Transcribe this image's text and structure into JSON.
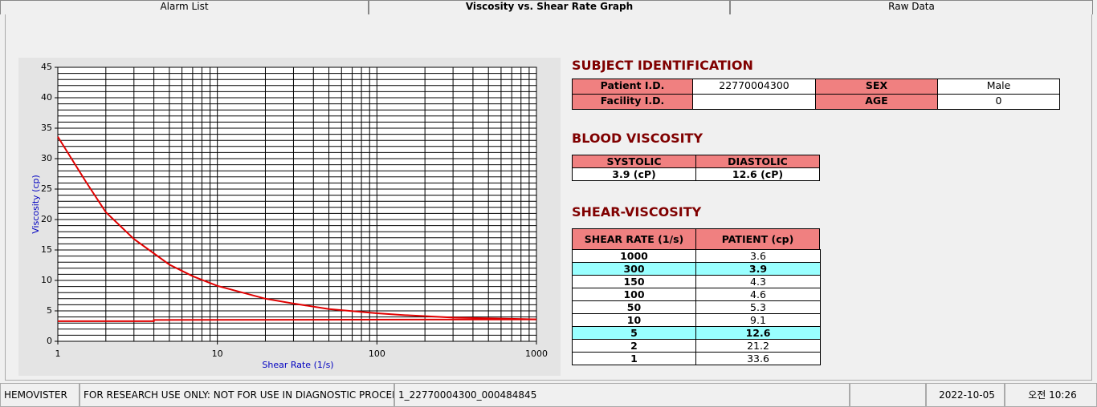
{
  "tabs": [
    {
      "label": "Alarm List"
    },
    {
      "label": "Viscosity vs. Shear Rate Graph",
      "active": true
    },
    {
      "label": "Raw Data"
    }
  ],
  "chart_data": {
    "type": "line",
    "x_label": "Shear Rate (1/s)",
    "y_label": "Viscosity (cp)",
    "xlog": true,
    "grid": true,
    "xlim": [
      1,
      1000
    ],
    "xticks": [
      1,
      10,
      100,
      1000
    ],
    "xminorticks": [
      2,
      3,
      4,
      5,
      6,
      7,
      8,
      9,
      20,
      30,
      40,
      50,
      60,
      70,
      80,
      90,
      200,
      300,
      400,
      500,
      600,
      700,
      800,
      900
    ],
    "ylim": [
      0,
      45
    ],
    "yticks": [
      0,
      5,
      10,
      15,
      20,
      25,
      30,
      35,
      40,
      45
    ],
    "yminorticks": [
      1,
      2,
      3,
      4,
      6,
      7,
      8,
      9,
      11,
      12,
      13,
      14,
      16,
      17,
      18,
      19,
      21,
      22,
      23,
      24,
      26,
      27,
      28,
      29,
      31,
      32,
      33,
      34,
      36,
      37,
      38,
      39,
      41,
      42,
      43,
      44
    ],
    "series": [
      {
        "color": "#e00000",
        "x": [
          1,
          1.5,
          2,
          3,
          5,
          7,
          10,
          20,
          30,
          50,
          100,
          150,
          300,
          1000
        ],
        "values": [
          33.6,
          26.2,
          21.2,
          16.8,
          12.6,
          10.7,
          9.1,
          7.0,
          6.2,
          5.3,
          4.6,
          4.3,
          3.9,
          3.6
        ]
      },
      {
        "color": "#e00000",
        "x": [
          1,
          4,
          4,
          1000
        ],
        "values": [
          3.3,
          3.3,
          3.5,
          3.6
        ]
      }
    ]
  },
  "subject": {
    "title": "SUBJECT IDENTIFICATION",
    "fields": [
      {
        "label": "Patient I.D.",
        "value": "22770004300"
      },
      {
        "label": "SEX",
        "value": "Male"
      },
      {
        "label": "Facility I.D."
      },
      {
        "label": "AGE",
        "value": "0"
      }
    ]
  },
  "blood": {
    "title": "BLOOD VISCOSITY",
    "headers": [
      "SYSTOLIC",
      "DIASTOLIC"
    ],
    "values": [
      "3.9 (cP)",
      "12.6 (cP)"
    ]
  },
  "shear": {
    "title": "SHEAR-VISCOSITY",
    "headers": [
      "SHEAR RATE (1/s)",
      "PATIENT (cp)"
    ],
    "rows": [
      {
        "rate": "1000",
        "patient": "3.6"
      },
      {
        "rate": "300",
        "patient": "3.9",
        "highlight": true
      },
      {
        "rate": "150",
        "patient": "4.3"
      },
      {
        "rate": "100",
        "patient": "4.6"
      },
      {
        "rate": "50",
        "patient": "5.3"
      },
      {
        "rate": "10",
        "patient": "9.1"
      },
      {
        "rate": "5",
        "patient": "12.6",
        "highlight": true
      },
      {
        "rate": "2",
        "patient": "21.2"
      },
      {
        "rate": "1",
        "patient": "33.6"
      }
    ]
  },
  "status": [
    "HEMOVISTER",
    "FOR RESEARCH USE ONLY: NOT FOR USE IN DIAGNOSTIC PROCEDURES",
    "1_22770004300_000484845",
    null,
    "2022-10-05",
    "오전 10:26"
  ]
}
